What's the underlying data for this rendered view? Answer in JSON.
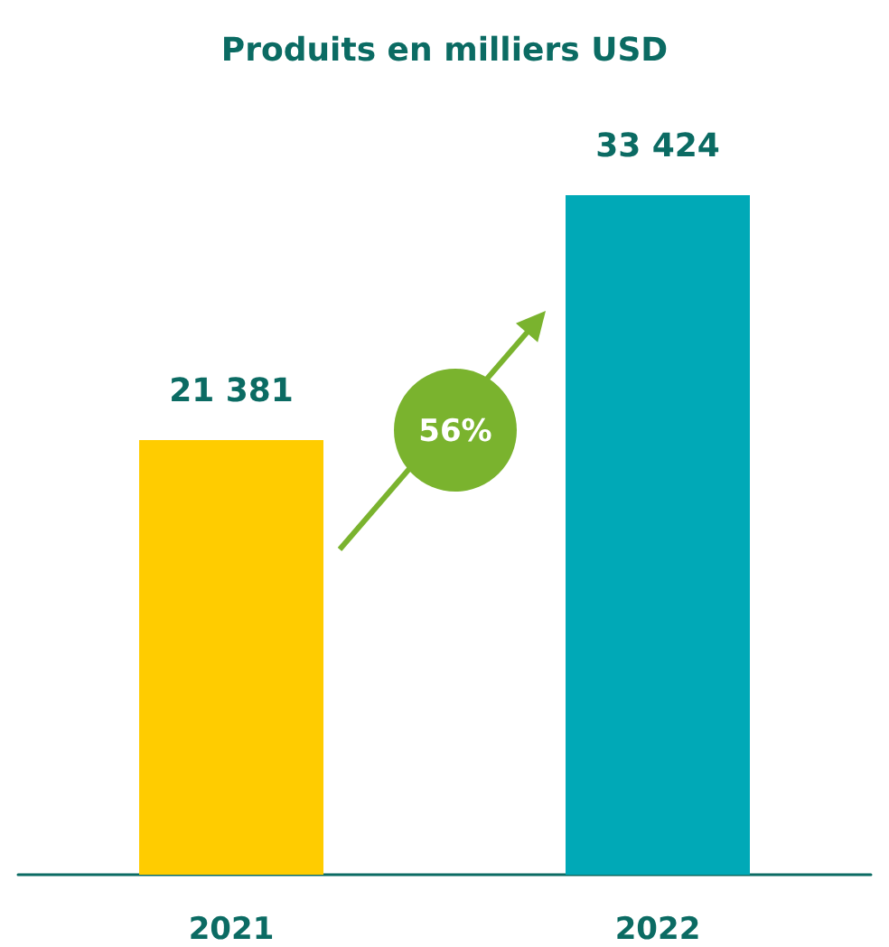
{
  "chart_data": {
    "type": "bar",
    "title": "Produits en milliers USD",
    "categories": [
      "2021",
      "2022"
    ],
    "values": [
      21381,
      33424
    ],
    "colors": [
      "#ffcc00",
      "#00a9b7"
    ],
    "value_labels": [
      "21 381",
      "33 424"
    ],
    "annotations": [
      "56%"
    ]
  }
}
